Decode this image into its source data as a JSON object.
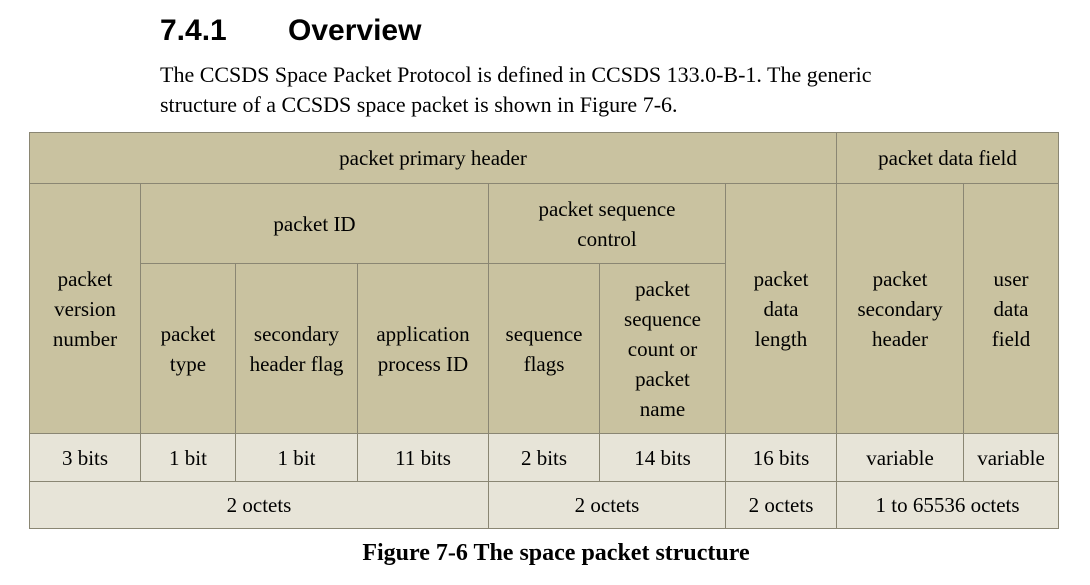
{
  "section": {
    "number": "7.4.1",
    "title": "Overview",
    "paragraph_line1": "The CCSDS Space Packet Protocol is defined in CCSDS 133.0-B-1. The generic",
    "paragraph_line2": "structure of a CCSDS space packet is shown in Figure 7-6."
  },
  "table": {
    "primary_header": "packet primary header",
    "data_field": "packet data field",
    "version_number": [
      "packet",
      "version",
      "number"
    ],
    "packet_id": "packet ID",
    "sequence_control": [
      "packet sequence",
      "control"
    ],
    "data_length": [
      "packet",
      "data",
      "length"
    ],
    "secondary_header": [
      "packet",
      "secondary",
      "header"
    ],
    "user_data_field": [
      "user",
      "data",
      "field"
    ],
    "packet_type": [
      "packet",
      "type"
    ],
    "secondary_header_flag": [
      "secondary",
      "header flag"
    ],
    "application_process_id": [
      "application",
      "process ID"
    ],
    "sequence_flags": [
      "sequence",
      "flags"
    ],
    "sequence_count": [
      "packet",
      "sequence",
      "count or",
      "packet",
      "name"
    ],
    "bits": [
      "3 bits",
      "1 bit",
      "1 bit",
      "11 bits",
      "2 bits",
      "14 bits",
      "16 bits",
      "variable",
      "variable"
    ],
    "octets": [
      "2 octets",
      "2 octets",
      "2 octets",
      "1 to 65536 octets"
    ]
  },
  "caption": "Figure 7-6 The space packet structure"
}
